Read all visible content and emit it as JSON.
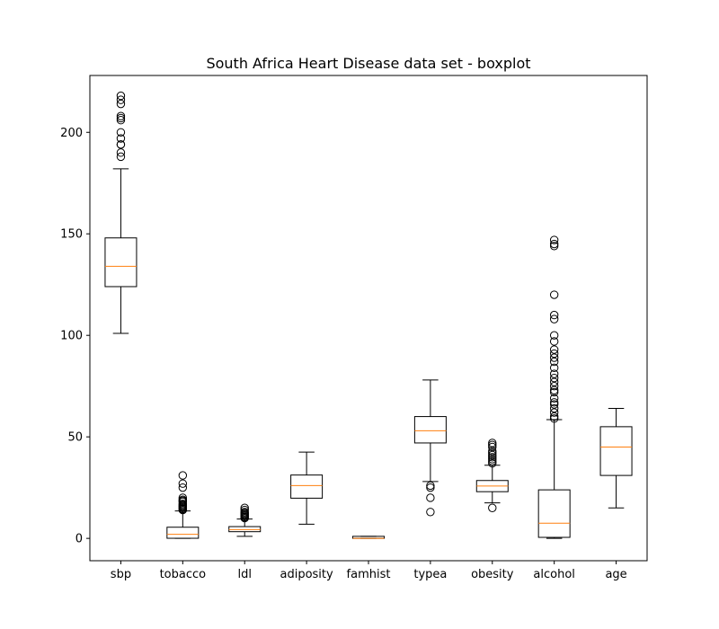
{
  "chart_data": {
    "type": "boxplot",
    "title": "South Africa Heart Disease data set - boxplot",
    "xlabel": "",
    "ylabel": "",
    "ylim": [
      -11,
      228
    ],
    "yticks": [
      0,
      50,
      100,
      150,
      200
    ],
    "grid": false,
    "legend": "none",
    "colors": {
      "box": "#000000",
      "median": "#ff7f0e",
      "flier": "#000000",
      "background": "#ffffff"
    },
    "categories": [
      "sbp",
      "tobacco",
      "ldl",
      "adiposity",
      "famhist",
      "typea",
      "obesity",
      "alcohol",
      "age"
    ],
    "boxes": [
      {
        "label": "sbp",
        "whisker_low": 101,
        "q1": 124,
        "median": 134,
        "q3": 148,
        "whisker_high": 182,
        "fliers": [
          188,
          190,
          194,
          194,
          197,
          200,
          206,
          207,
          208,
          214,
          216,
          218
        ]
      },
      {
        "label": "tobacco",
        "whisker_low": 0,
        "q1": 0.05,
        "median": 2,
        "q3": 5.5,
        "whisker_high": 13.5,
        "fliers": [
          14,
          14.5,
          15,
          15.5,
          16,
          16.5,
          17,
          18,
          18.5,
          19,
          20,
          25,
          27,
          31
        ]
      },
      {
        "label": "ldl",
        "whisker_low": 1,
        "q1": 3.3,
        "median": 4.3,
        "q3": 5.8,
        "whisker_high": 9.5,
        "fliers": [
          10,
          10.5,
          11,
          11.5,
          12,
          12.5,
          13,
          14,
          15
        ]
      },
      {
        "label": "adiposity",
        "whisker_low": 7,
        "q1": 19.8,
        "median": 26,
        "q3": 31.2,
        "whisker_high": 42.5,
        "fliers": []
      },
      {
        "label": "famhist",
        "whisker_low": 0,
        "q1": 0,
        "median": 0,
        "q3": 1,
        "whisker_high": 1,
        "fliers": []
      },
      {
        "label": "typea",
        "whisker_low": 28,
        "q1": 47,
        "median": 53,
        "q3": 60,
        "whisker_high": 78,
        "fliers": [
          13,
          20,
          25,
          26
        ]
      },
      {
        "label": "obesity",
        "whisker_low": 17.5,
        "q1": 23,
        "median": 25.8,
        "q3": 28.5,
        "whisker_high": 36,
        "fliers": [
          15,
          37,
          38,
          39,
          40,
          41,
          42,
          43,
          45,
          46,
          47
        ]
      },
      {
        "label": "alcohol",
        "whisker_low": 0,
        "q1": 0.5,
        "median": 7.5,
        "q3": 23.9,
        "whisker_high": 58.5,
        "fliers": [
          59,
          60,
          62,
          64,
          66,
          67,
          69,
          72,
          73,
          75,
          77,
          79,
          81,
          84,
          87,
          89,
          91,
          93,
          97,
          100,
          108,
          110,
          120,
          144,
          145,
          147
        ]
      },
      {
        "label": "age",
        "whisker_low": 15,
        "q1": 31,
        "median": 45,
        "q3": 55,
        "whisker_high": 64,
        "fliers": []
      }
    ]
  }
}
